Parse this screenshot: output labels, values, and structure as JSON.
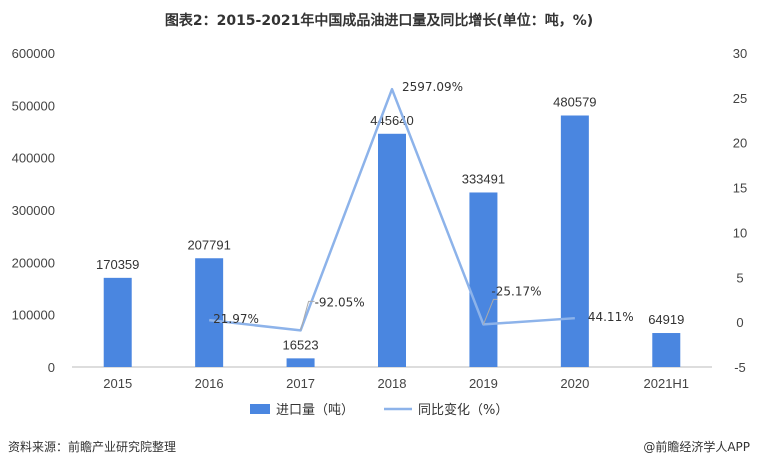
{
  "footer": {
    "source": "资料来源：前瞻产业研究院整理",
    "brand": "@前瞻经济学人APP"
  },
  "colors": {
    "bar": "#4a86e0",
    "line": "#8db3ea",
    "axis": "#bbbbbb"
  },
  "chart_data": {
    "type": "bar",
    "title": "图表2：2015-2021年中国成品油进口量及同比增长(单位：吨，%)",
    "categories": [
      "2015",
      "2016",
      "2017",
      "2018",
      "2019",
      "2020",
      "2021H1"
    ],
    "series": [
      {
        "name": "进口量（吨）",
        "type": "bar",
        "axis": "left",
        "values": [
          170359,
          207791,
          16523,
          445640,
          333491,
          480579,
          64919
        ],
        "labels": [
          "170359",
          "207791",
          "16523",
          "445640",
          "333491",
          "480579",
          "64919"
        ]
      },
      {
        "name": "同比变化（%）",
        "type": "line",
        "axis": "right",
        "values": [
          null,
          0.2197,
          -0.9205,
          25.9709,
          -0.2517,
          0.4411,
          null
        ],
        "labels": [
          null,
          "21.97%",
          "-92.05%",
          "2597.09%",
          "-25.17%",
          "44.11%",
          null
        ]
      }
    ],
    "y_left": {
      "min": 0,
      "max": 600000,
      "ticks": [
        0,
        100000,
        200000,
        300000,
        400000,
        500000,
        600000
      ]
    },
    "y_right": {
      "min": -5,
      "max": 30,
      "ticks": [
        -5,
        0,
        5,
        10,
        15,
        20,
        25,
        30
      ]
    },
    "grid": false,
    "legend": "bottom-center"
  }
}
